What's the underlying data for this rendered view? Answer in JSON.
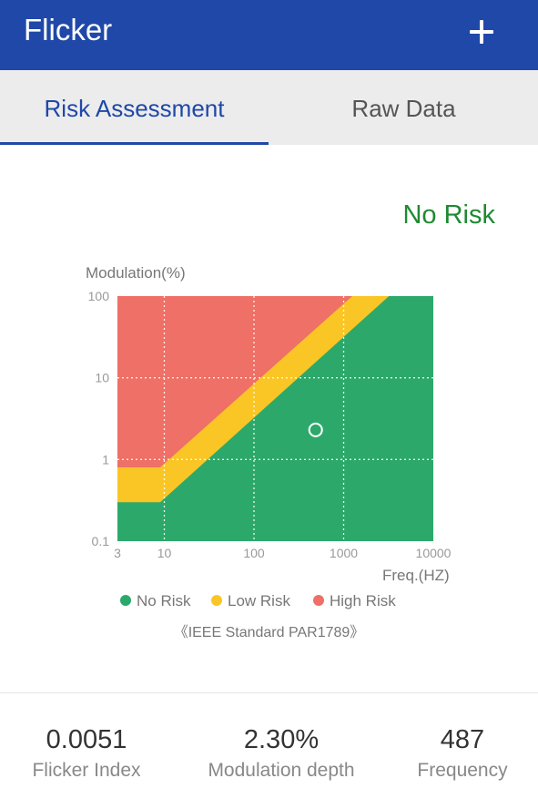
{
  "app": {
    "title": "Flicker",
    "add_icon": "plus-icon"
  },
  "tabs": [
    {
      "label": "Risk Assessment",
      "active": true
    },
    {
      "label": "Raw Data",
      "active": false
    }
  ],
  "risk": {
    "label": "No Risk",
    "color": "#1e8a32"
  },
  "chart_data": {
    "type": "scatter",
    "ylabel": "Modulation(%)",
    "xlabel": "Freq.(HZ)",
    "x_scale": "log",
    "y_scale": "log",
    "xlim": [
      3,
      10000
    ],
    "ylim": [
      0.1,
      100
    ],
    "x_ticks": [
      "3",
      "10",
      "100",
      "1000",
      "10000"
    ],
    "y_ticks": [
      "100",
      "10",
      "1",
      "0.1"
    ],
    "grid": true,
    "regions": [
      {
        "name": "High Risk",
        "color": "#ee7066"
      },
      {
        "name": "Low Risk",
        "color": "#fac626"
      },
      {
        "name": "No Risk",
        "color": "#2ca96a"
      }
    ],
    "point": {
      "x": 487,
      "y": 2.3
    }
  },
  "legend": [
    {
      "label": "No Risk",
      "color": "#2ca96a"
    },
    {
      "label": "Low Risk",
      "color": "#fac626"
    },
    {
      "label": "High Risk",
      "color": "#ee7066"
    }
  ],
  "standard": "《IEEE Standard PAR1789》",
  "stats": [
    {
      "value": "0.0051",
      "label": "Flicker Index"
    },
    {
      "value": "2.30%",
      "label": "Modulation depth"
    },
    {
      "value": "487",
      "label": "Frequency"
    }
  ]
}
